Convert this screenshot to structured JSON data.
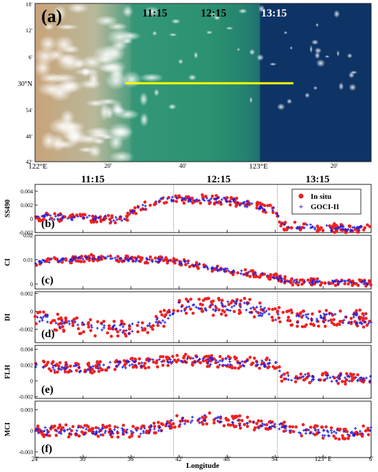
{
  "map": {
    "panel_label": "(a)",
    "time_labels": [
      "11:15",
      "12:15",
      "13:15"
    ],
    "lat_ticks": [
      "18'",
      "12'",
      "6'",
      "30°N",
      "54'",
      "48'",
      "42'"
    ],
    "lon_ticks": [
      "122°E",
      "20'",
      "40'",
      "123°E",
      "20'"
    ],
    "transect_color": "#ffff00",
    "colors": {
      "land_tan": "#c9a37a",
      "turbid_green": "#2e8f6e",
      "ocean_blue": "#0f3566"
    }
  },
  "chart_data": {
    "type": "scatter",
    "xlabel": "Longitude",
    "x_ticks": [
      "24'",
      "30'",
      "36'",
      "42'",
      "48'",
      "54'",
      "123° E",
      "6'"
    ],
    "x_tick_values": [
      24,
      30,
      36,
      42,
      48,
      54,
      60,
      66
    ],
    "x_range": [
      24,
      66
    ],
    "time_labels": [
      "11:15",
      "12:15",
      "13:15"
    ],
    "time_dividers": [
      41.3,
      54.3
    ],
    "legend": [
      "In situ",
      "GOCI-II"
    ],
    "legend_position": "top-right",
    "series_colors": {
      "In situ": "#ee2222",
      "GOCI-II": "#2020dd"
    },
    "panels": [
      {
        "label": "(b)",
        "ylabel": "SS490",
        "ylim": [
          -0.002,
          0.005
        ],
        "yticks": [
          "0.004",
          "0.002",
          "0",
          "-0.002"
        ],
        "ytick_values": [
          0.004,
          0.002,
          0,
          -0.002
        ],
        "profile": [
          [
            24,
            0.0003
          ],
          [
            30,
            0.0002
          ],
          [
            35,
            -0.0001
          ],
          [
            37,
            0.0015
          ],
          [
            40,
            0.0028
          ],
          [
            44,
            0.0029
          ],
          [
            48,
            0.0027
          ],
          [
            52,
            0.0018
          ],
          [
            54,
            0.0012
          ],
          [
            55,
            -0.001
          ],
          [
            60,
            -0.0013
          ],
          [
            66,
            -0.0015
          ]
        ],
        "spread": 0.0008
      },
      {
        "label": "(c)",
        "ylabel": "CI",
        "ylim": [
          -0.002,
          0.02
        ],
        "yticks": [
          "0.02",
          "0.01",
          "0"
        ],
        "ytick_values": [
          0.02,
          0.01,
          0
        ],
        "profile": [
          [
            24,
            0.009
          ],
          [
            28,
            0.01
          ],
          [
            32,
            0.011
          ],
          [
            36,
            0.01
          ],
          [
            40,
            0.01
          ],
          [
            44,
            0.008
          ],
          [
            48,
            0.0055
          ],
          [
            52,
            0.004
          ],
          [
            54,
            0.003
          ],
          [
            56,
            0.001
          ],
          [
            66,
            0.0005
          ]
        ],
        "spread": 0.0017
      },
      {
        "label": "(d)",
        "ylabel": "DI",
        "ylim": [
          -0.0035,
          0.0022
        ],
        "yticks": [
          "0.002",
          "0",
          "-0.002"
        ],
        "ytick_values": [
          0.002,
          0,
          -0.002
        ],
        "profile": [
          [
            24,
            -0.0005
          ],
          [
            28,
            -0.0015
          ],
          [
            32,
            -0.002
          ],
          [
            36,
            -0.002
          ],
          [
            38,
            -0.0015
          ],
          [
            41,
            -0.0005
          ],
          [
            42,
            0.0005
          ],
          [
            48,
            0.0005
          ],
          [
            50,
            0.0008
          ],
          [
            52,
            0.0
          ],
          [
            56,
            -0.0008
          ],
          [
            66,
            -0.0008
          ]
        ],
        "spread": 0.0012
      },
      {
        "label": "(e)",
        "ylabel": "FLH",
        "ylim": [
          -0.0022,
          0.0045
        ],
        "yticks": [
          "0.004",
          "0.002",
          "0",
          "-0.002"
        ],
        "ytick_values": [
          0.004,
          0.002,
          0,
          -0.002
        ],
        "profile": [
          [
            24,
            0.002
          ],
          [
            30,
            0.0015
          ],
          [
            34,
            0.002
          ],
          [
            38,
            0.0023
          ],
          [
            42,
            0.0028
          ],
          [
            46,
            0.0025
          ],
          [
            50,
            0.0023
          ],
          [
            54,
            0.0022
          ],
          [
            55,
            0.0004
          ],
          [
            66,
            0.0003
          ]
        ],
        "spread": 0.0009
      },
      {
        "label": "(f)",
        "ylabel": "MCI",
        "ylim": [
          -0.0038,
          0.0042
        ],
        "yticks": [
          "0.003",
          "0",
          "-0.003"
        ],
        "ytick_values": [
          0.003,
          0,
          -0.003
        ],
        "profile": [
          [
            24,
            0.0
          ],
          [
            30,
            0.0
          ],
          [
            36,
            -0.0001
          ],
          [
            40,
            0.0005
          ],
          [
            42,
            0.0014
          ],
          [
            46,
            0.0017
          ],
          [
            50,
            0.0012
          ],
          [
            54,
            0.0006
          ],
          [
            58,
            0.0
          ],
          [
            62,
            -0.0004
          ],
          [
            66,
            0.0
          ]
        ],
        "spread": 0.0011
      }
    ]
  }
}
